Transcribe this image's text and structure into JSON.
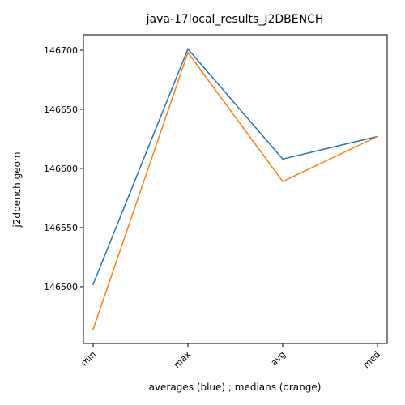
{
  "chart_data": {
    "type": "line",
    "title": "java-17local_results_J2DBENCH",
    "xlabel": "averages (blue) ; medians (orange)",
    "ylabel": "j2dbench.geom",
    "categories": [
      "min",
      "max",
      "avg",
      "med"
    ],
    "series": [
      {
        "values": [
          146502,
          146701,
          146608,
          146627
        ],
        "color": "#1f77b4"
      },
      {
        "values": [
          146464,
          146698,
          146589,
          146627
        ],
        "color": "#ff7f0e"
      }
    ],
    "yticks": [
      146500,
      146550,
      146600,
      146650,
      146700
    ],
    "ylim": [
      146452,
      146713
    ],
    "grid": false
  }
}
